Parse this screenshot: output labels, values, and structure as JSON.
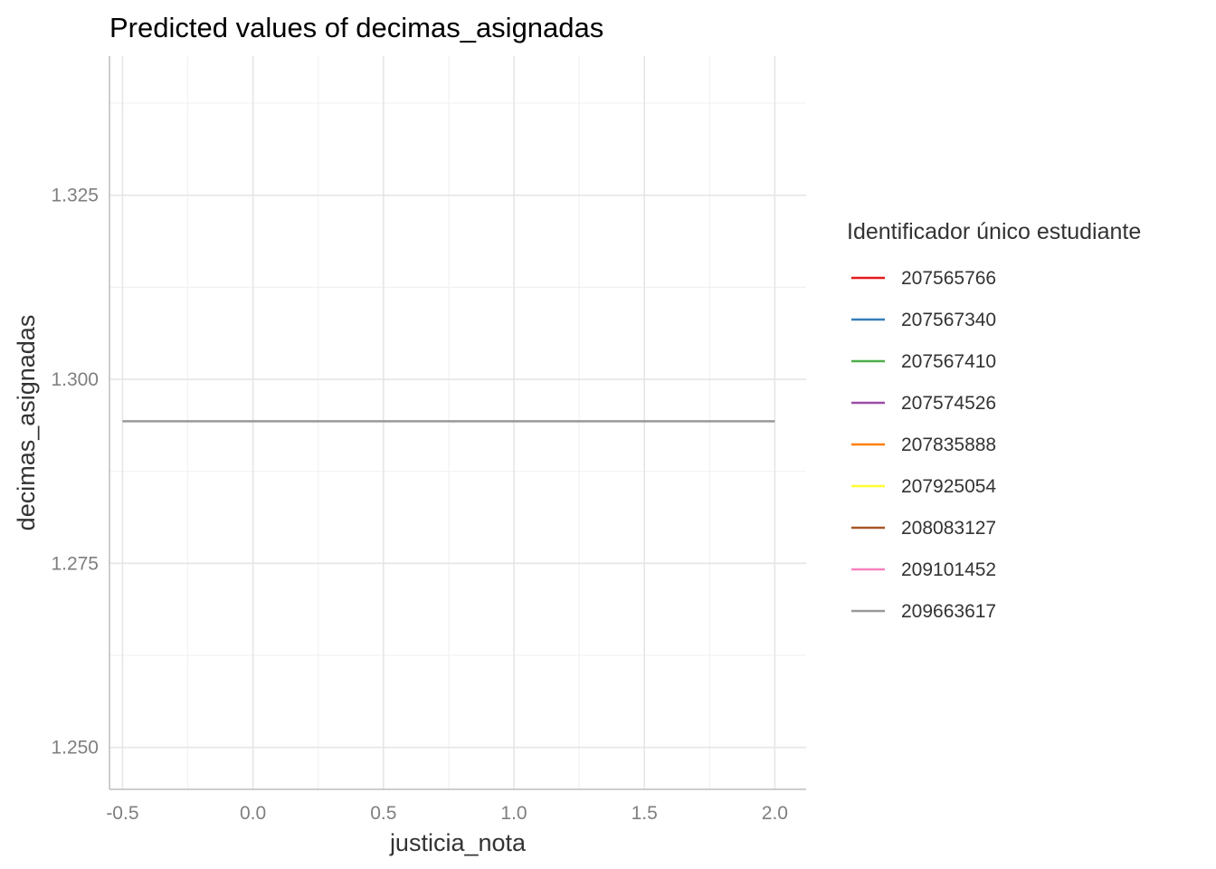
{
  "chart_data": {
    "type": "line",
    "title": "Predicted values of decimas_asignadas",
    "xlabel": "justicia_nota",
    "ylabel": "decimas_asignadas",
    "xlim": [
      -0.55,
      2.12
    ],
    "ylim": [
      1.2443,
      1.3439
    ],
    "x_ticks": [
      -0.5,
      0.0,
      0.5,
      1.0,
      1.5,
      2.0
    ],
    "x_tick_labels": [
      "-0.5",
      "0.0",
      "0.5",
      "1.0",
      "1.5",
      "2.0"
    ],
    "y_ticks": [
      1.25,
      1.275,
      1.3,
      1.325
    ],
    "y_tick_labels": [
      "1.250",
      "1.275",
      "1.300",
      "1.325"
    ],
    "grid": true,
    "legend": {
      "title": "Identificador único estudiante",
      "position": "right"
    },
    "series": [
      {
        "name": "207565766",
        "color": "#E41A1C",
        "x": [],
        "y": []
      },
      {
        "name": "207567340",
        "color": "#377EB8",
        "x": [],
        "y": []
      },
      {
        "name": "207567410",
        "color": "#4DAF4A",
        "x": [],
        "y": []
      },
      {
        "name": "207574526",
        "color": "#984EA3",
        "x": [],
        "y": []
      },
      {
        "name": "207835888",
        "color": "#FF7F00",
        "x": [],
        "y": []
      },
      {
        "name": "207925054",
        "color": "#FFFF33",
        "x": [],
        "y": []
      },
      {
        "name": "208083127",
        "color": "#A65628",
        "x": [],
        "y": []
      },
      {
        "name": "209101452",
        "color": "#F781BF",
        "x": [],
        "y": []
      },
      {
        "name": "209663617",
        "color": "#999999",
        "x": [
          -0.5,
          2.0
        ],
        "y": [
          1.2943,
          1.2943
        ]
      }
    ]
  }
}
